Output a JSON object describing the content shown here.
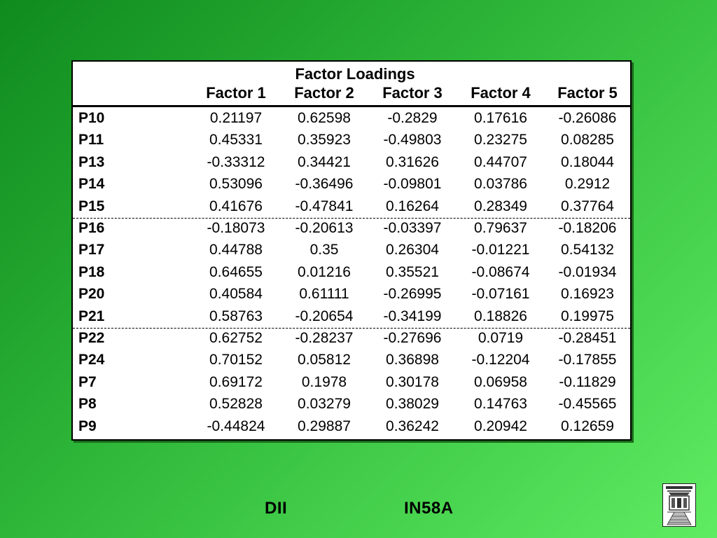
{
  "table": {
    "title": "Factor Loadings",
    "columns": [
      "Factor 1",
      "Factor 2",
      "Factor 3",
      "Factor 4",
      "Factor 5"
    ],
    "rows": [
      {
        "label": "P10",
        "values": [
          "0.21197",
          "0.62598",
          "-0.2829",
          "0.17616",
          "-0.26086"
        ]
      },
      {
        "label": "P11",
        "values": [
          "0.45331",
          "0.35923",
          "-0.49803",
          "0.23275",
          "0.08285"
        ]
      },
      {
        "label": "P13",
        "values": [
          "-0.33312",
          "0.34421",
          "0.31626",
          "0.44707",
          "0.18044"
        ]
      },
      {
        "label": "P14",
        "values": [
          "0.53096",
          "-0.36496",
          "-0.09801",
          "0.03786",
          "0.2912"
        ]
      },
      {
        "label": "P15",
        "values": [
          "0.41676",
          "-0.47841",
          "0.16264",
          "0.28349",
          "0.37764"
        ]
      },
      {
        "label": "P16",
        "values": [
          "-0.18073",
          "-0.20613",
          "-0.03397",
          "0.79637",
          "-0.18206"
        ]
      },
      {
        "label": "P17",
        "values": [
          "0.44788",
          "0.35",
          "0.26304",
          "-0.01221",
          "0.54132"
        ]
      },
      {
        "label": "P18",
        "values": [
          "0.64655",
          "0.01216",
          "0.35521",
          "-0.08674",
          "-0.01934"
        ]
      },
      {
        "label": "P20",
        "values": [
          "0.40584",
          "0.61111",
          "-0.26995",
          "-0.07161",
          "0.16923"
        ]
      },
      {
        "label": "P21",
        "values": [
          "0.58763",
          "-0.20654",
          "-0.34199",
          "0.18826",
          "0.19975"
        ]
      },
      {
        "label": "P22",
        "values": [
          "0.62752",
          "-0.28237",
          "-0.27696",
          "0.0719",
          "-0.28451"
        ]
      },
      {
        "label": "P24",
        "values": [
          "0.70152",
          "0.05812",
          "0.36898",
          "-0.12204",
          "-0.17855"
        ]
      },
      {
        "label": "P7",
        "values": [
          "0.69172",
          "0.1978",
          "0.30178",
          "0.06958",
          "-0.11829"
        ]
      },
      {
        "label": "P8",
        "values": [
          "0.52828",
          "0.03279",
          "0.38029",
          "0.14763",
          "-0.45565"
        ]
      },
      {
        "label": "P9",
        "values": [
          "-0.44824",
          "0.29887",
          "0.36242",
          "0.20942",
          "0.12659"
        ]
      }
    ]
  },
  "footer": {
    "left": "DII",
    "right": "IN58A",
    "logo_icon": "building-logo-icon"
  },
  "colors": {
    "background_dark": "#0f8a1e",
    "background_light": "#5fec62"
  }
}
